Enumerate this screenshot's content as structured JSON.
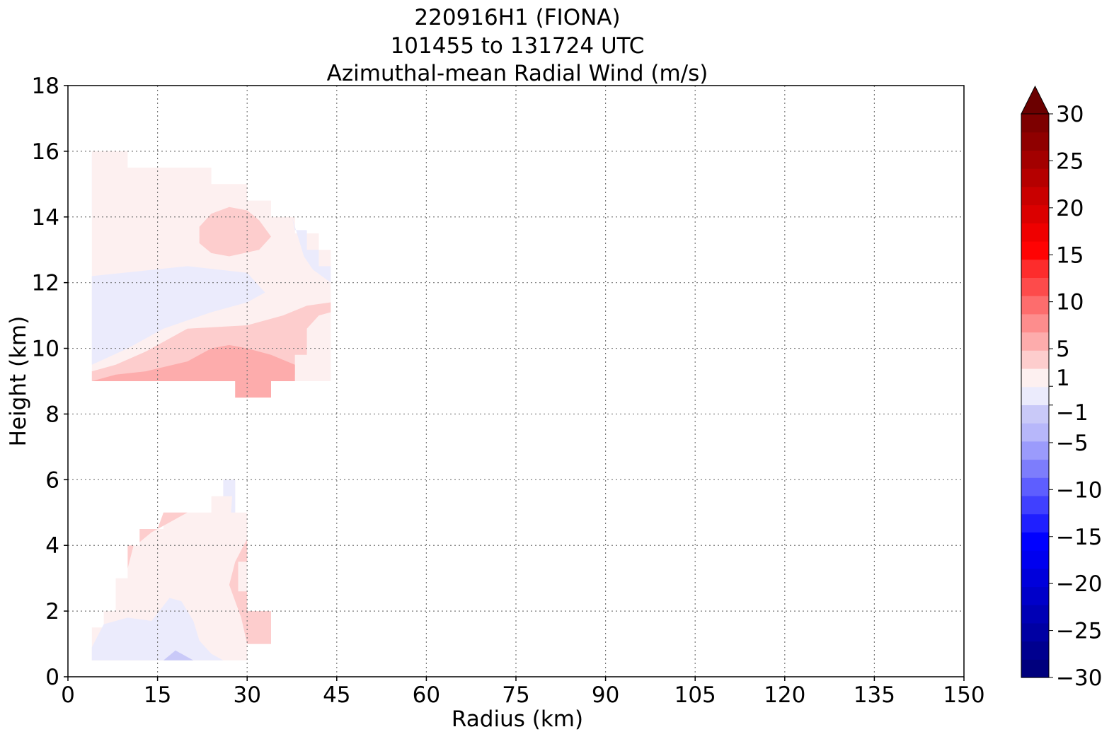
{
  "chart_data": {
    "type": "heatmap",
    "title_lines": [
      "220916H1 (FIONA)",
      "101455 to 131724 UTC",
      "Azimuthal-mean Radial Wind (m/s)"
    ],
    "xlabel": "Radius (km)",
    "ylabel": "Height (km)",
    "xlim": [
      0,
      150
    ],
    "ylim": [
      0,
      18
    ],
    "xticks": [
      0,
      15,
      30,
      45,
      60,
      75,
      90,
      105,
      120,
      135,
      150
    ],
    "yticks": [
      0,
      2,
      4,
      6,
      8,
      10,
      12,
      14,
      16,
      18
    ],
    "grid": true,
    "colorbar": {
      "min": -30,
      "max": 30,
      "extend": "max",
      "ticks": [
        {
          "value": 30,
          "label": "30"
        },
        {
          "value": 25,
          "label": "25"
        },
        {
          "value": 20,
          "label": "20"
        },
        {
          "value": 15,
          "label": "15"
        },
        {
          "value": 10,
          "label": "10"
        },
        {
          "value": 5,
          "label": "5"
        },
        {
          "value": 1,
          "label": "1"
        },
        {
          "value": -1,
          "label": "−1"
        },
        {
          "value": -5,
          "label": "−5"
        },
        {
          "value": -10,
          "label": "−10"
        },
        {
          "value": -15,
          "label": "−15"
        },
        {
          "value": -20,
          "label": "−20"
        },
        {
          "value": -25,
          "label": "−25"
        },
        {
          "value": -30,
          "label": "−30"
        }
      ]
    },
    "regions": [
      {
        "level": "weak_inflow",
        "points": [
          [
            4,
            9.5
          ],
          [
            4,
            15.9
          ],
          [
            10,
            15.4
          ],
          [
            13,
            14.6
          ],
          [
            10,
            14.1
          ],
          [
            4,
            14.1
          ]
        ]
      },
      {
        "level": "weak_outflow",
        "points": [
          [
            4,
            14
          ],
          [
            4,
            16
          ],
          [
            10,
            16
          ],
          [
            10,
            15.5
          ],
          [
            24,
            15.5
          ],
          [
            24,
            15
          ],
          [
            30,
            15
          ],
          [
            30,
            14.5
          ],
          [
            34,
            14.5
          ],
          [
            34,
            14
          ],
          [
            38,
            14
          ],
          [
            38,
            13.5
          ],
          [
            42,
            13.5
          ],
          [
            42,
            13
          ],
          [
            44,
            13
          ],
          [
            44,
            9
          ],
          [
            4,
            9
          ]
        ]
      },
      {
        "level": "weak_inflow",
        "points": [
          [
            4,
            9.5
          ],
          [
            4,
            12.2
          ],
          [
            20,
            12.5
          ],
          [
            30,
            12.3
          ],
          [
            33,
            11.7
          ],
          [
            30,
            11.4
          ],
          [
            24,
            11.1
          ],
          [
            16,
            10.6
          ],
          [
            10,
            10
          ],
          [
            4,
            9.5
          ]
        ]
      },
      {
        "level": "weak_inflow",
        "points": [
          [
            37.5,
            14
          ],
          [
            38,
            13.6
          ],
          [
            40,
            13.6
          ],
          [
            40,
            13
          ],
          [
            42,
            13
          ],
          [
            42,
            12.5
          ],
          [
            44,
            12.5
          ],
          [
            44,
            12
          ],
          [
            41,
            12.4
          ],
          [
            39.5,
            12.8
          ]
        ]
      },
      {
        "level": "outflow_1_3",
        "points": [
          [
            22,
            13.7
          ],
          [
            22,
            13.2
          ],
          [
            24,
            12.9
          ],
          [
            27,
            12.8
          ],
          [
            32,
            13
          ],
          [
            34,
            13.4
          ],
          [
            32,
            13.9
          ],
          [
            30,
            14.2
          ],
          [
            27,
            14.3
          ],
          [
            24,
            14.1
          ]
        ]
      },
      {
        "level": "outflow_1_3",
        "points": [
          [
            4,
            9
          ],
          [
            4,
            9.3
          ],
          [
            8,
            9.5
          ],
          [
            13,
            9.9
          ],
          [
            20,
            10.6
          ],
          [
            30,
            10.7
          ],
          [
            36,
            11
          ],
          [
            40,
            11.3
          ],
          [
            44,
            11.4
          ],
          [
            44,
            11.1
          ],
          [
            42,
            11
          ],
          [
            40,
            10.6
          ],
          [
            40,
            9.8
          ],
          [
            38,
            9.8
          ],
          [
            38,
            9.2
          ],
          [
            34,
            9
          ],
          [
            34,
            9.4
          ],
          [
            30,
            8.5
          ],
          [
            28,
            8.5
          ],
          [
            28,
            9
          ]
        ]
      },
      {
        "level": "outflow_3_5",
        "points": [
          [
            4,
            9
          ],
          [
            8,
            9.2
          ],
          [
            13,
            9.3
          ],
          [
            20,
            9.6
          ],
          [
            24,
            10
          ],
          [
            27,
            10.1
          ],
          [
            30,
            10
          ],
          [
            34,
            9.8
          ],
          [
            38,
            9.5
          ],
          [
            38,
            9
          ],
          [
            34,
            9
          ],
          [
            34,
            8.5
          ],
          [
            28,
            8.5
          ],
          [
            28,
            9
          ]
        ]
      },
      {
        "level": "weak_outflow",
        "points": [
          [
            4,
            0.5
          ],
          [
            4,
            1.5
          ],
          [
            6,
            1.5
          ],
          [
            6,
            2
          ],
          [
            8,
            2
          ],
          [
            8,
            3
          ],
          [
            10,
            3
          ],
          [
            10,
            4
          ],
          [
            12,
            4
          ],
          [
            12,
            4.5
          ],
          [
            16,
            4.5
          ],
          [
            16,
            5
          ],
          [
            24,
            5
          ],
          [
            24,
            5.5
          ],
          [
            26,
            5.5
          ],
          [
            26,
            6
          ],
          [
            28,
            6
          ],
          [
            28,
            5
          ],
          [
            30,
            5
          ],
          [
            30,
            2
          ],
          [
            34,
            2
          ],
          [
            34,
            1
          ],
          [
            30,
            1
          ],
          [
            30,
            0.5
          ]
        ]
      },
      {
        "level": "weak_inflow",
        "points": [
          [
            4,
            0.5
          ],
          [
            4,
            0.9
          ],
          [
            6,
            1.6
          ],
          [
            10,
            1.8
          ],
          [
            14,
            1.7
          ],
          [
            17,
            2.4
          ],
          [
            19,
            2.3
          ],
          [
            21,
            1.7
          ],
          [
            22,
            1.1
          ],
          [
            24,
            0.7
          ],
          [
            26,
            0.5
          ]
        ]
      },
      {
        "level": "inflow_1_3",
        "points": [
          [
            16,
            0.5
          ],
          [
            18,
            0.8
          ],
          [
            20,
            0.6
          ],
          [
            21,
            0.5
          ]
        ]
      },
      {
        "level": "weak_inflow",
        "points": [
          [
            26,
            5.5
          ],
          [
            26,
            6
          ],
          [
            28,
            6
          ],
          [
            28,
            5
          ],
          [
            27.3,
            5
          ],
          [
            27.5,
            5.5
          ]
        ]
      },
      {
        "level": "outflow_1_3",
        "points": [
          [
            12,
            4.1
          ],
          [
            12,
            4.5
          ],
          [
            15,
            4.5
          ],
          [
            16,
            5
          ],
          [
            20,
            5
          ],
          [
            17,
            4.7
          ],
          [
            14,
            4.4
          ]
        ]
      },
      {
        "level": "outflow_1_3",
        "points": [
          [
            10,
            3.3
          ],
          [
            10,
            4
          ],
          [
            11,
            4
          ]
        ]
      },
      {
        "level": "outflow_1_3",
        "points": [
          [
            30,
            4.2
          ],
          [
            28,
            3.5
          ],
          [
            27,
            2.8
          ],
          [
            28,
            2.3
          ],
          [
            29,
            1.8
          ],
          [
            30,
            1
          ],
          [
            34,
            1
          ],
          [
            34,
            2
          ],
          [
            30,
            2
          ],
          [
            30,
            2.6
          ],
          [
            28.5,
            2.6
          ],
          [
            28.5,
            3.5
          ],
          [
            30,
            3.5
          ]
        ]
      }
    ]
  },
  "colors": {
    "weak_outflow": "#fdf0f0",
    "outflow_1_3": "#fdcdcd",
    "outflow_3_5": "#fdacac",
    "weak_inflow": "#ebebfc",
    "inflow_1_3": "#c9c9f8",
    "grid": "#777777"
  },
  "colorbar_colors": [
    "#00007d",
    "#00008f",
    "#0000a3",
    "#0000b5",
    "#0000c9",
    "#0000db",
    "#0000ef",
    "#0101ff",
    "#1f1fff",
    "#4040ff",
    "#5e5eff",
    "#7d7dfc",
    "#9b9bfc",
    "#b7b7fa",
    "#c9c9f8",
    "#ebebfc",
    "#fdf0f0",
    "#fdcdcd",
    "#fdacac",
    "#fd8d8d",
    "#fd6d6d",
    "#fd4b4b",
    "#fd2c2c",
    "#ff0303",
    "#ef0000",
    "#db0000",
    "#c90000",
    "#b50000",
    "#a30000",
    "#8f0000",
    "#7d0000"
  ],
  "colorbar_extend_color": "#6b0000"
}
